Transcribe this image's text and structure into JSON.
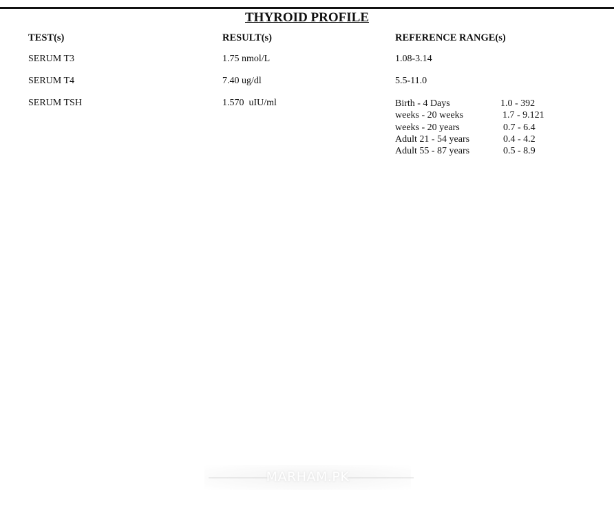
{
  "report": {
    "title": "THYROID PROFILE",
    "headers": {
      "test": "TEST(s)",
      "result": "RESULT(s)",
      "reference": "REFERENCE RANGE(s)"
    },
    "rows": [
      {
        "test": "SERUM T3",
        "result": "1.75 nmol/L",
        "reference": "1.08-3.14"
      },
      {
        "test": "SERUM T4",
        "result": "7.40 ug/dl",
        "reference": "5.5-11.0"
      },
      {
        "test": "SERUM TSH",
        "result": "1.570  uIU/ml",
        "reference_ranges": [
          {
            "label": "Birth - 4 Days",
            "range": "1.0 - 392"
          },
          {
            "label": "weeks - 20 weeks",
            "range": "1.7 - 9.121"
          },
          {
            "label": "weeks - 20 years",
            "range": "0.7 - 6.4"
          },
          {
            "label": "Adult 21 - 54 years",
            "range": "0.4 - 4.2"
          },
          {
            "label": "Adult 55 - 87 years",
            "range": "0.5 - 8.9"
          }
        ]
      }
    ]
  },
  "watermark": "MARHAM.PK"
}
